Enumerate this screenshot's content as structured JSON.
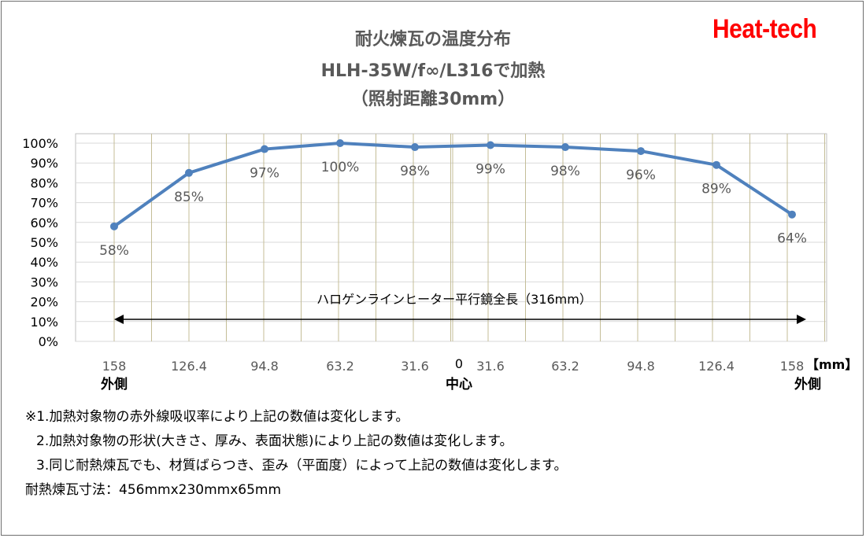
{
  "chart_data": {
    "type": "line",
    "title": "耐火煉瓦の温度分布",
    "subtitle": "HLH-35W/f∞/L316で加熱",
    "subtitle2": "（照射距離30mm）",
    "categories": [
      "158",
      "126.4",
      "94.8",
      "63.2",
      "31.6",
      "31.6",
      "63.2",
      "94.8",
      "126.4",
      "158"
    ],
    "center_label": "0",
    "unit_label": "【mm】",
    "category_sublabels": {
      "left": "外側",
      "center": "中心",
      "right": "外側"
    },
    "series": [
      {
        "values": [
          58,
          85,
          97,
          100,
          98,
          99,
          98,
          96,
          89,
          64
        ],
        "labels": [
          "58%",
          "85%",
          "97%",
          "100%",
          "98%",
          "99%",
          "98%",
          "96%",
          "89%",
          "64%"
        ]
      }
    ],
    "y_ticks": [
      "0%",
      "10%",
      "20%",
      "30%",
      "40%",
      "50%",
      "60%",
      "70%",
      "80%",
      "90%",
      "100%"
    ],
    "ylim": [
      0,
      100
    ],
    "grid": true,
    "annotation": "ハロゲンラインヒーター平行鏡全長（316mm）",
    "colors": {
      "line": "#4f81bd",
      "grid": "#c4bd97",
      "hgrid": "#d9d9d9",
      "title": "#595959",
      "brand": "#ff0000"
    }
  },
  "brand": "Heat-tech",
  "notes": [
    "※1.加熱対象物の赤外線吸収率により上記の数値は変化します。",
    "2.加熱対象物の形状(大きさ、厚み、表面状態)により上記の数値は変化します。",
    "3.同じ耐熱煉瓦でも、材質ばらつき、歪み（平面度）によって上記の数値は変化します。",
    "耐熱煉瓦寸法：456mmx230mmx65mm"
  ]
}
